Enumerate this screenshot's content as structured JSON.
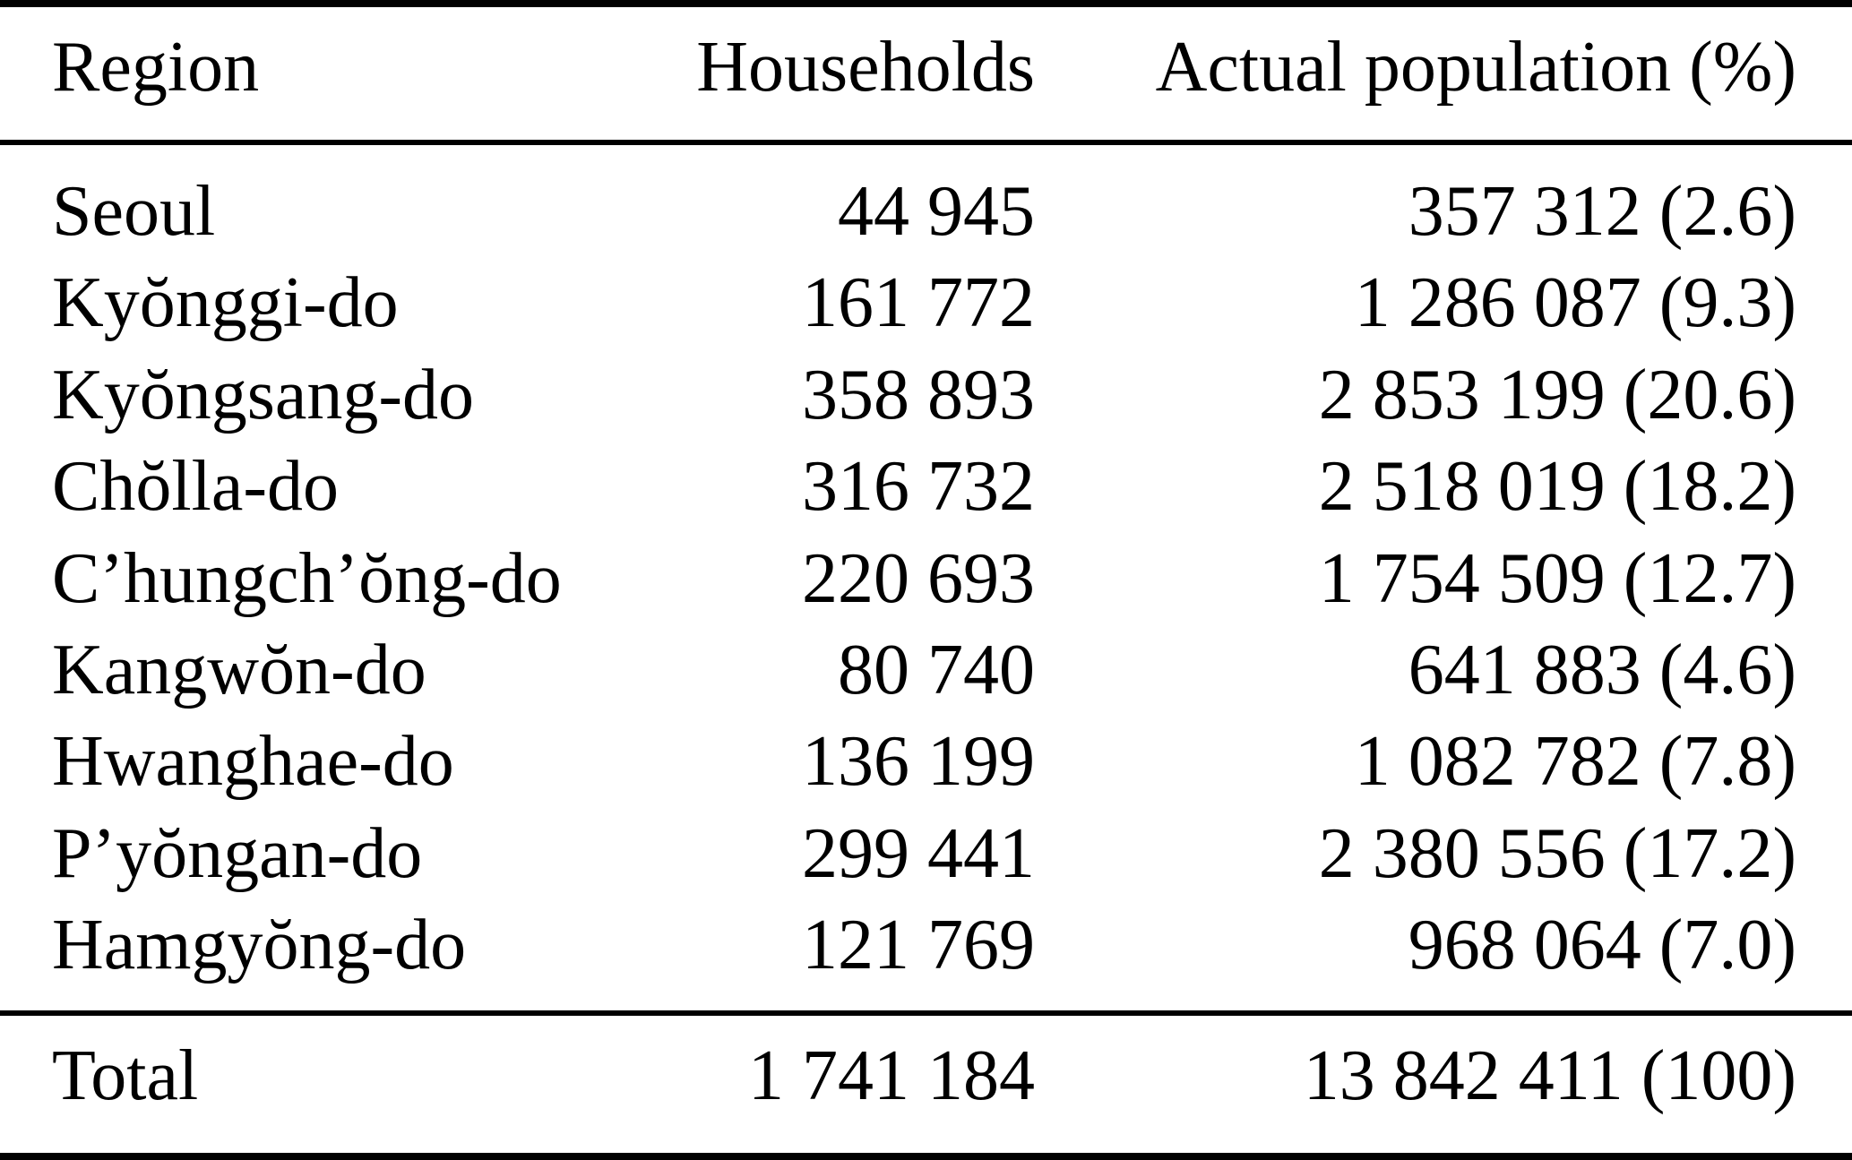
{
  "table": {
    "columns": {
      "region": "Region",
      "households": "Households",
      "population": "Actual population (%)"
    },
    "rows": [
      {
        "region": "Seoul",
        "households": "44 945",
        "population": "357 312 (2.6)"
      },
      {
        "region": "Kyŏnggi-do",
        "households": "161 772",
        "population": "1 286 087 (9.3)"
      },
      {
        "region": "Kyŏngsang-do",
        "households": "358 893",
        "population": "2 853 199 (20.6)"
      },
      {
        "region": "Chŏlla-do",
        "households": "316 732",
        "population": "2 518 019 (18.2)"
      },
      {
        "region": "C’hungch’ŏng-do",
        "households": "220 693",
        "population": "1 754 509 (12.7)"
      },
      {
        "region": "Kangwŏn-do",
        "households": "80 740",
        "population": "641 883 (4.6)"
      },
      {
        "region": "Hwanghae-do",
        "households": "136 199",
        "population": "1 082 782 (7.8)"
      },
      {
        "region": "P’yŏngan-do",
        "households": "299 441",
        "population": "2 380 556 (17.2)"
      },
      {
        "region": "Hamgyŏng-do",
        "households": "121 769",
        "population": "968 064 (7.0)"
      }
    ],
    "total": {
      "region": "Total",
      "households": "1 741 184",
      "population": "13 842 411 (100)"
    }
  }
}
